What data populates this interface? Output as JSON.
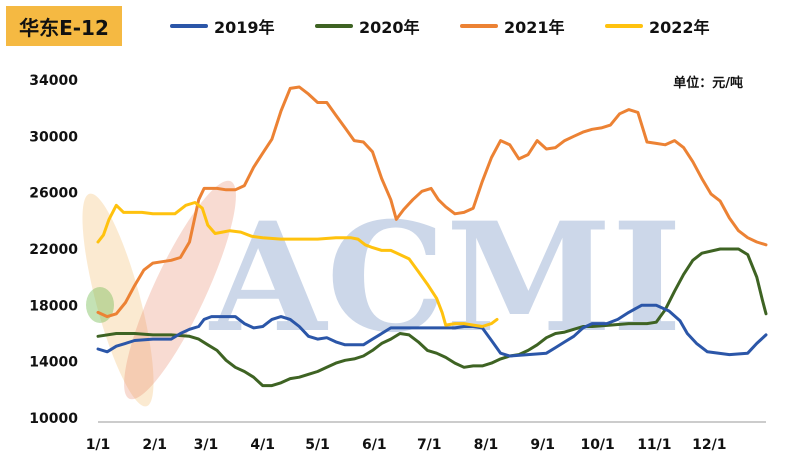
{
  "header": {
    "title": "华东E-12"
  },
  "unit_label": "单位：元/吨",
  "watermark": "ACMI",
  "colors": {
    "2019": "#2B56A8",
    "2020": "#3E6323",
    "2021": "#EC8234",
    "2022": "#FFC20E",
    "title_bg": "#F5B942"
  },
  "chart_data": {
    "type": "line",
    "title": "华东E-12",
    "ylabel": "",
    "xlabel": "",
    "ylim": [
      10000,
      34000
    ],
    "yticks": [
      10000,
      14000,
      18000,
      22000,
      26000,
      30000,
      34000
    ],
    "xlim": [
      0,
      365
    ],
    "xticks": [
      {
        "label": "1/1",
        "day": 0
      },
      {
        "label": "2/1",
        "day": 31
      },
      {
        "label": "3/1",
        "day": 59
      },
      {
        "label": "4/1",
        "day": 90
      },
      {
        "label": "5/1",
        "day": 120
      },
      {
        "label": "6/1",
        "day": 151
      },
      {
        "label": "7/1",
        "day": 181
      },
      {
        "label": "8/1",
        "day": 212
      },
      {
        "label": "9/1",
        "day": 243
      },
      {
        "label": "10/1",
        "day": 273
      },
      {
        "label": "11/1",
        "day": 304
      },
      {
        "label": "12/1",
        "day": 334
      }
    ],
    "legend_position": "top",
    "series": [
      {
        "name": "2019年",
        "color": "#2B56A8",
        "points": [
          [
            0,
            14900
          ],
          [
            5,
            14700
          ],
          [
            10,
            15100
          ],
          [
            15,
            15300
          ],
          [
            20,
            15500
          ],
          [
            30,
            15600
          ],
          [
            40,
            15600
          ],
          [
            45,
            16000
          ],
          [
            50,
            16300
          ],
          [
            55,
            16500
          ],
          [
            58,
            17000
          ],
          [
            62,
            17200
          ],
          [
            75,
            17200
          ],
          [
            80,
            16700
          ],
          [
            85,
            16400
          ],
          [
            90,
            16500
          ],
          [
            95,
            17000
          ],
          [
            100,
            17200
          ],
          [
            105,
            17000
          ],
          [
            110,
            16500
          ],
          [
            115,
            15800
          ],
          [
            120,
            15600
          ],
          [
            125,
            15700
          ],
          [
            130,
            15400
          ],
          [
            135,
            15200
          ],
          [
            140,
            15200
          ],
          [
            145,
            15200
          ],
          [
            150,
            15600
          ],
          [
            155,
            16000
          ],
          [
            160,
            16400
          ],
          [
            175,
            16400
          ],
          [
            185,
            16400
          ],
          [
            195,
            16400
          ],
          [
            200,
            16500
          ],
          [
            205,
            16500
          ],
          [
            210,
            16400
          ],
          [
            215,
            15500
          ],
          [
            220,
            14600
          ],
          [
            225,
            14400
          ],
          [
            235,
            14500
          ],
          [
            245,
            14600
          ],
          [
            250,
            15000
          ],
          [
            255,
            15400
          ],
          [
            260,
            15800
          ],
          [
            265,
            16400
          ],
          [
            270,
            16700
          ],
          [
            278,
            16700
          ],
          [
            284,
            17000
          ],
          [
            290,
            17500
          ],
          [
            297,
            18000
          ],
          [
            305,
            18000
          ],
          [
            312,
            17600
          ],
          [
            318,
            16900
          ],
          [
            322,
            16000
          ],
          [
            327,
            15300
          ],
          [
            333,
            14700
          ],
          [
            345,
            14500
          ],
          [
            355,
            14600
          ],
          [
            360,
            15300
          ],
          [
            365,
            15900
          ]
        ]
      },
      {
        "name": "2020年",
        "color": "#3E6323",
        "points": [
          [
            0,
            15800
          ],
          [
            10,
            16000
          ],
          [
            20,
            16000
          ],
          [
            30,
            15900
          ],
          [
            40,
            15900
          ],
          [
            50,
            15800
          ],
          [
            55,
            15600
          ],
          [
            60,
            15200
          ],
          [
            65,
            14800
          ],
          [
            70,
            14100
          ],
          [
            75,
            13600
          ],
          [
            80,
            13300
          ],
          [
            85,
            12900
          ],
          [
            90,
            12300
          ],
          [
            95,
            12300
          ],
          [
            100,
            12500
          ],
          [
            105,
            12800
          ],
          [
            110,
            12900
          ],
          [
            115,
            13100
          ],
          [
            120,
            13300
          ],
          [
            125,
            13600
          ],
          [
            130,
            13900
          ],
          [
            135,
            14100
          ],
          [
            140,
            14200
          ],
          [
            145,
            14400
          ],
          [
            150,
            14800
          ],
          [
            155,
            15300
          ],
          [
            160,
            15600
          ],
          [
            165,
            16000
          ],
          [
            170,
            15900
          ],
          [
            175,
            15400
          ],
          [
            180,
            14800
          ],
          [
            185,
            14600
          ],
          [
            190,
            14300
          ],
          [
            195,
            13900
          ],
          [
            200,
            13600
          ],
          [
            205,
            13700
          ],
          [
            210,
            13700
          ],
          [
            215,
            13900
          ],
          [
            220,
            14200
          ],
          [
            225,
            14400
          ],
          [
            230,
            14500
          ],
          [
            235,
            14800
          ],
          [
            240,
            15200
          ],
          [
            245,
            15700
          ],
          [
            250,
            16000
          ],
          [
            255,
            16100
          ],
          [
            260,
            16300
          ],
          [
            265,
            16500
          ],
          [
            270,
            16500
          ],
          [
            280,
            16600
          ],
          [
            290,
            16700
          ],
          [
            300,
            16700
          ],
          [
            305,
            16800
          ],
          [
            310,
            17700
          ],
          [
            315,
            19000
          ],
          [
            320,
            20200
          ],
          [
            325,
            21200
          ],
          [
            330,
            21700
          ],
          [
            340,
            22000
          ],
          [
            350,
            22000
          ],
          [
            355,
            21600
          ],
          [
            360,
            20000
          ],
          [
            363,
            18400
          ],
          [
            365,
            17400
          ]
        ]
      },
      {
        "name": "2021年",
        "color": "#EC8234",
        "points": [
          [
            0,
            17500
          ],
          [
            5,
            17200
          ],
          [
            10,
            17400
          ],
          [
            15,
            18200
          ],
          [
            20,
            19400
          ],
          [
            25,
            20500
          ],
          [
            30,
            21000
          ],
          [
            35,
            21100
          ],
          [
            40,
            21200
          ],
          [
            45,
            21400
          ],
          [
            50,
            22500
          ],
          [
            55,
            25500
          ],
          [
            58,
            26300
          ],
          [
            65,
            26300
          ],
          [
            70,
            26200
          ],
          [
            75,
            26200
          ],
          [
            80,
            26500
          ],
          [
            85,
            27800
          ],
          [
            90,
            28800
          ],
          [
            95,
            29800
          ],
          [
            100,
            31800
          ],
          [
            105,
            33400
          ],
          [
            110,
            33500
          ],
          [
            115,
            33000
          ],
          [
            120,
            32400
          ],
          [
            125,
            32400
          ],
          [
            130,
            31500
          ],
          [
            135,
            30600
          ],
          [
            140,
            29700
          ],
          [
            145,
            29600
          ],
          [
            150,
            28900
          ],
          [
            155,
            27000
          ],
          [
            160,
            25500
          ],
          [
            163,
            24100
          ],
          [
            167,
            24800
          ],
          [
            172,
            25500
          ],
          [
            177,
            26100
          ],
          [
            182,
            26300
          ],
          [
            186,
            25500
          ],
          [
            190,
            25000
          ],
          [
            195,
            24500
          ],
          [
            200,
            24600
          ],
          [
            205,
            24900
          ],
          [
            210,
            26800
          ],
          [
            215,
            28500
          ],
          [
            220,
            29700
          ],
          [
            225,
            29400
          ],
          [
            230,
            28400
          ],
          [
            235,
            28700
          ],
          [
            240,
            29700
          ],
          [
            245,
            29100
          ],
          [
            250,
            29200
          ],
          [
            255,
            29700
          ],
          [
            260,
            30000
          ],
          [
            265,
            30300
          ],
          [
            270,
            30500
          ],
          [
            275,
            30600
          ],
          [
            280,
            30800
          ],
          [
            285,
            31600
          ],
          [
            290,
            31900
          ],
          [
            295,
            31700
          ],
          [
            300,
            29600
          ],
          [
            305,
            29500
          ],
          [
            310,
            29400
          ],
          [
            315,
            29700
          ],
          [
            320,
            29200
          ],
          [
            325,
            28200
          ],
          [
            330,
            27000
          ],
          [
            335,
            25900
          ],
          [
            340,
            25400
          ],
          [
            345,
            24200
          ],
          [
            350,
            23300
          ],
          [
            355,
            22800
          ],
          [
            360,
            22500
          ],
          [
            365,
            22300
          ]
        ]
      },
      {
        "name": "2022年",
        "color": "#FFC20E",
        "points": [
          [
            0,
            22500
          ],
          [
            3,
            23000
          ],
          [
            6,
            24100
          ],
          [
            10,
            25100
          ],
          [
            14,
            24600
          ],
          [
            18,
            24600
          ],
          [
            24,
            24600
          ],
          [
            30,
            24500
          ],
          [
            36,
            24500
          ],
          [
            42,
            24500
          ],
          [
            48,
            25100
          ],
          [
            53,
            25300
          ],
          [
            57,
            24900
          ],
          [
            60,
            23700
          ],
          [
            64,
            23100
          ],
          [
            68,
            23200
          ],
          [
            72,
            23300
          ],
          [
            78,
            23200
          ],
          [
            84,
            22900
          ],
          [
            90,
            22800
          ],
          [
            100,
            22700
          ],
          [
            110,
            22700
          ],
          [
            120,
            22700
          ],
          [
            130,
            22800
          ],
          [
            138,
            22800
          ],
          [
            142,
            22700
          ],
          [
            146,
            22300
          ],
          [
            150,
            22100
          ],
          [
            155,
            21900
          ],
          [
            160,
            21900
          ],
          [
            165,
            21600
          ],
          [
            170,
            21300
          ],
          [
            175,
            20400
          ],
          [
            180,
            19500
          ],
          [
            185,
            18500
          ],
          [
            188,
            17500
          ],
          [
            190,
            16600
          ],
          [
            195,
            16700
          ],
          [
            200,
            16700
          ],
          [
            205,
            16600
          ],
          [
            210,
            16500
          ],
          [
            215,
            16700
          ],
          [
            218,
            17000
          ]
        ]
      }
    ]
  }
}
